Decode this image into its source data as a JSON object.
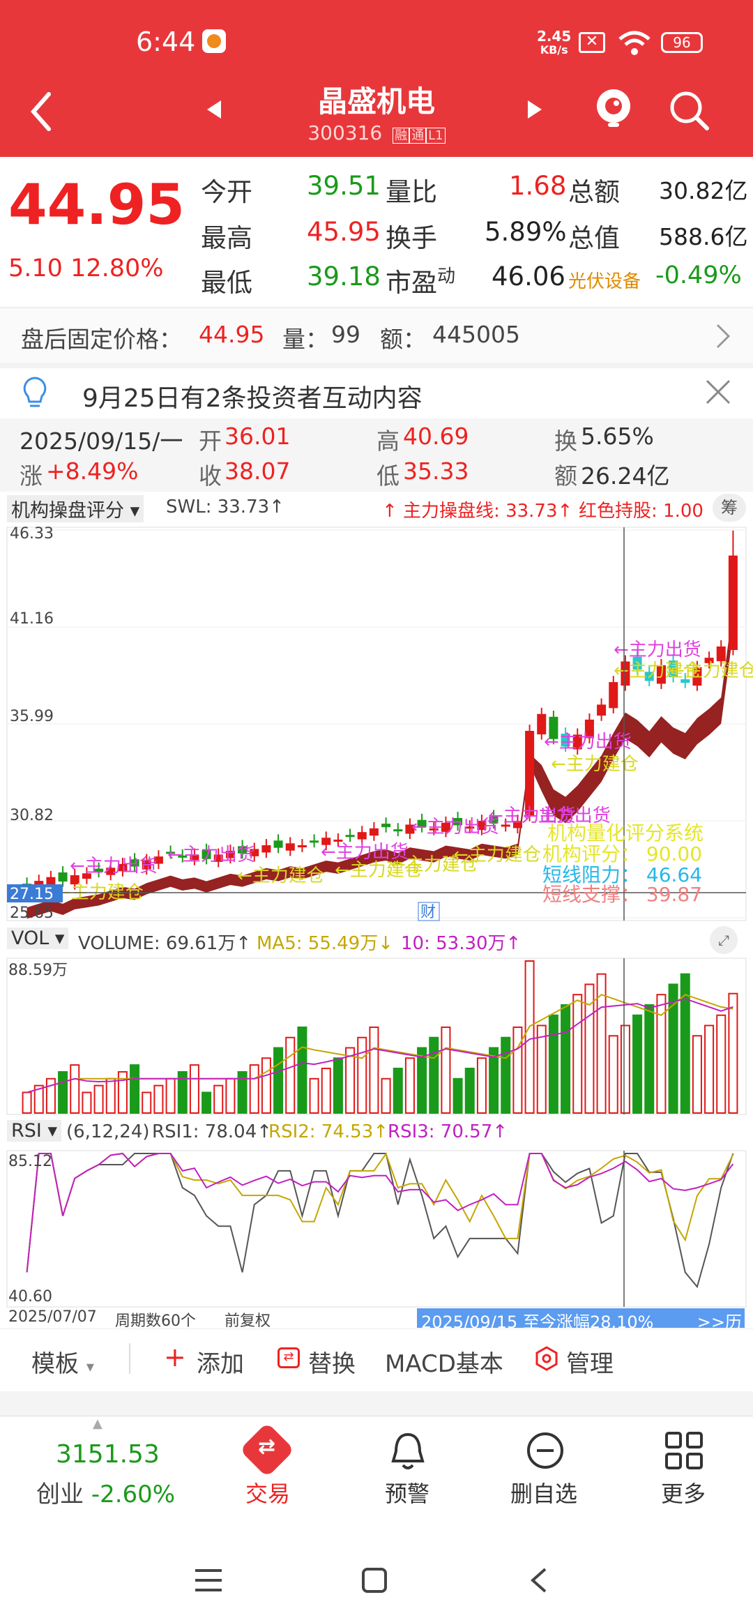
{
  "status": {
    "time": "6:44",
    "speed": "2.45",
    "speed_unit": "KB/s",
    "battery": "96"
  },
  "header": {
    "title": "晶盛机电",
    "code": "300316",
    "tag1": "融",
    "tag2": "通",
    "tag3": "L1"
  },
  "quote": {
    "price": "44.95",
    "change": "5.10",
    "change_pct": "12.80%",
    "open_label": "今开",
    "open": "39.51",
    "high_label": "最高",
    "high": "45.95",
    "low_label": "最低",
    "low": "39.18",
    "ratio_label": "量比",
    "ratio": "1.68",
    "turnover_label": "换手",
    "turnover": "5.89%",
    "pe_label": "市盈",
    "pe_sup": "动",
    "pe": "46.06",
    "amount_label": "总额",
    "amount": "30.82亿",
    "mcap_label": "总值",
    "mcap": "588.6亿",
    "sector_label": "光伏设备",
    "sector": "-0.49%"
  },
  "after_hours": {
    "label": "盘后固定价格：",
    "price": "44.95",
    "vol_label": "量：",
    "vol": "99",
    "amt_label": "额：",
    "amt": "445005"
  },
  "notice": {
    "text": "9月25日有2条投资者互动内容"
  },
  "day_info": {
    "date": "2025/09/15/一",
    "open_l": "开",
    "open": "36.01",
    "high_l": "高",
    "high": "40.69",
    "turn_l": "换",
    "turn": "5.65%",
    "chg_l": "涨",
    "chg": "+8.49%",
    "close_l": "收",
    "close": "38.07",
    "low_l": "低",
    "low": "35.33",
    "amt_l": "额",
    "amt": "26.24亿"
  },
  "main_chart": {
    "indicator": "机构操盘评分",
    "swl": "SWL: 33.73↑",
    "zl": "↑ 主力操盘线: 33.73↑",
    "hold": "红色持股: 1.00",
    "side_btn": "筹",
    "y_labels": [
      "46.33",
      "41.16",
      "35.99",
      "30.82",
      "25.65"
    ],
    "last_low": "27.15",
    "fin_tag": "财",
    "sys_title": "机构量化评分系统",
    "score": "机构评分：  90.00",
    "resist": "短线阻力：  46.64",
    "support": "短线支撑：  39.87",
    "ann_out": "主力出货",
    "ann_build": "主力建仓"
  },
  "vol_chart": {
    "label": "VOL",
    "volume": "VOLUME: 69.61万↑",
    "ma5": "MA5: 55.49万↓",
    "ma10": "10: 53.30万↑",
    "top": "88.59万"
  },
  "rsi_chart": {
    "label": "RSI",
    "params": "(6,12,24)",
    "rsi1": "RSI1: 78.04↑",
    "rsi2": "RSI2: 74.53↑",
    "rsi3": "RSI3: 70.57↑",
    "top": "85.12",
    "bottom": "40.60",
    "start_date": "2025/07/07",
    "period": "周期数60个",
    "adjust": "前复权",
    "range": "2025/09/15 至今涨幅28.10%",
    "hist": ">>历"
  },
  "tabs": {
    "template": "模板",
    "add": "添加",
    "replace": "替换",
    "macd": "MACD基本",
    "manage": "管理"
  },
  "bottom_nav": {
    "index_value": "3151.53",
    "index_name": "创业",
    "index_pct": "-2.60%",
    "trade": "交易",
    "alert": "预警",
    "delete": "删自选",
    "more": "更多"
  },
  "chart_data": {
    "type": "candlestick",
    "y_range": [
      25.65,
      46.33
    ],
    "y_ticks": [
      46.33,
      41.16,
      35.99,
      30.82,
      25.65
    ],
    "closes": [
      27.4,
      27.6,
      27.8,
      27.6,
      27.9,
      28.0,
      28.1,
      28.3,
      28.5,
      28.4,
      28.7,
      28.9,
      29.1,
      28.9,
      29.0,
      28.8,
      29.0,
      29.2,
      29.1,
      29.3,
      29.5,
      29.4,
      29.6,
      29.5,
      29.7,
      29.9,
      29.8,
      30.0,
      30.2,
      30.4,
      30.5,
      30.3,
      30.6,
      30.5,
      30.4,
      30.7,
      30.6,
      30.5,
      30.8,
      30.7,
      30.6,
      30.8,
      35.6,
      36.5,
      35.2,
      34.8,
      35.4,
      36.2,
      37.0,
      38.2,
      39.3,
      38.9,
      38.3,
      39.1,
      38.5,
      38.2,
      39.0,
      39.5,
      40.1,
      44.95
    ],
    "volume_range": [
      0,
      88.59
    ],
    "rsi_range": [
      40.6,
      85.12
    ]
  }
}
